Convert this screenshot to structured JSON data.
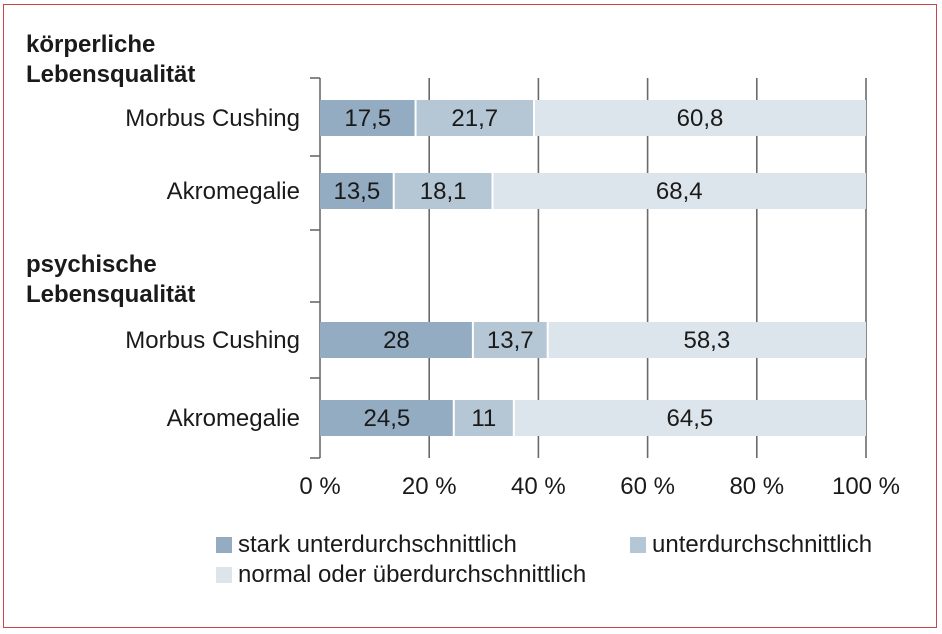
{
  "colors": {
    "frame": "#c8454a",
    "series": [
      "#93acc1",
      "#b5c6d4",
      "#dce4ec"
    ],
    "grid": "#6a6a6a"
  },
  "chart_data": {
    "type": "bar",
    "orientation": "horizontal",
    "stacked": true,
    "groups": [
      {
        "title_lines": [
          "körperliche",
          "Lebensqualität"
        ],
        "categories": [
          "Morbus Cushing",
          "Akromegalie"
        ],
        "labels": [
          [
            "17,5",
            "21,7",
            "60,8"
          ],
          [
            "13,5",
            "18,1",
            "68,4"
          ]
        ]
      },
      {
        "title_lines": [
          "psychische",
          "Lebensqualität"
        ],
        "categories": [
          "Morbus Cushing",
          "Akromegalie"
        ],
        "labels": [
          [
            "28",
            "13,7",
            "58,3"
          ],
          [
            "24,5",
            "11",
            "64,5"
          ]
        ]
      }
    ],
    "series": [
      {
        "name": "stark unterdurchschnittlich",
        "values": [
          17.5,
          13.5,
          28,
          24.5
        ]
      },
      {
        "name": "unterdurchschnittlich",
        "values": [
          21.7,
          18.1,
          13.7,
          11
        ]
      },
      {
        "name": "normal oder überdurchschnittlich",
        "values": [
          60.8,
          68.4,
          58.3,
          64.5
        ]
      }
    ],
    "xlim": [
      0,
      100
    ],
    "xticks": [
      "0 %",
      "20 %",
      "40 %",
      "60 %",
      "80 %",
      "100 %"
    ],
    "grid": true,
    "legend_position": "bottom"
  }
}
